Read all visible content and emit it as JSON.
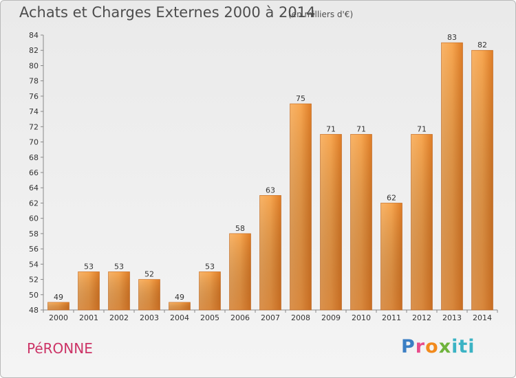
{
  "header": {
    "title": "Achats et Charges Externes 2000 à 2014",
    "subtitle": "(en milliers d'€)"
  },
  "footer": {
    "commune": "PéRONNE",
    "logo": "Proxiti"
  },
  "colors": {
    "bar_light": "#f7a650",
    "bar_dark": "#d8741f",
    "bar_edge": "#c0651b",
    "commune": "#cc3366"
  },
  "chart_data": {
    "type": "bar",
    "title": "Achats et Charges Externes 2000 à 2014",
    "subtitle": "(en milliers d'€)",
    "xlabel": "",
    "ylabel": "",
    "categories": [
      "2000",
      "2001",
      "2002",
      "2003",
      "2004",
      "2005",
      "2006",
      "2007",
      "2008",
      "2009",
      "2010",
      "2011",
      "2012",
      "2013",
      "2014"
    ],
    "values": [
      49,
      53,
      53,
      52,
      49,
      53,
      58,
      63,
      75,
      71,
      71,
      62,
      71,
      83,
      82
    ],
    "ylim": [
      48,
      84
    ],
    "yticks": [
      48,
      50,
      52,
      54,
      56,
      58,
      60,
      62,
      64,
      66,
      68,
      70,
      72,
      74,
      76,
      78,
      80,
      82,
      84
    ],
    "grid": false,
    "legend": "none"
  }
}
